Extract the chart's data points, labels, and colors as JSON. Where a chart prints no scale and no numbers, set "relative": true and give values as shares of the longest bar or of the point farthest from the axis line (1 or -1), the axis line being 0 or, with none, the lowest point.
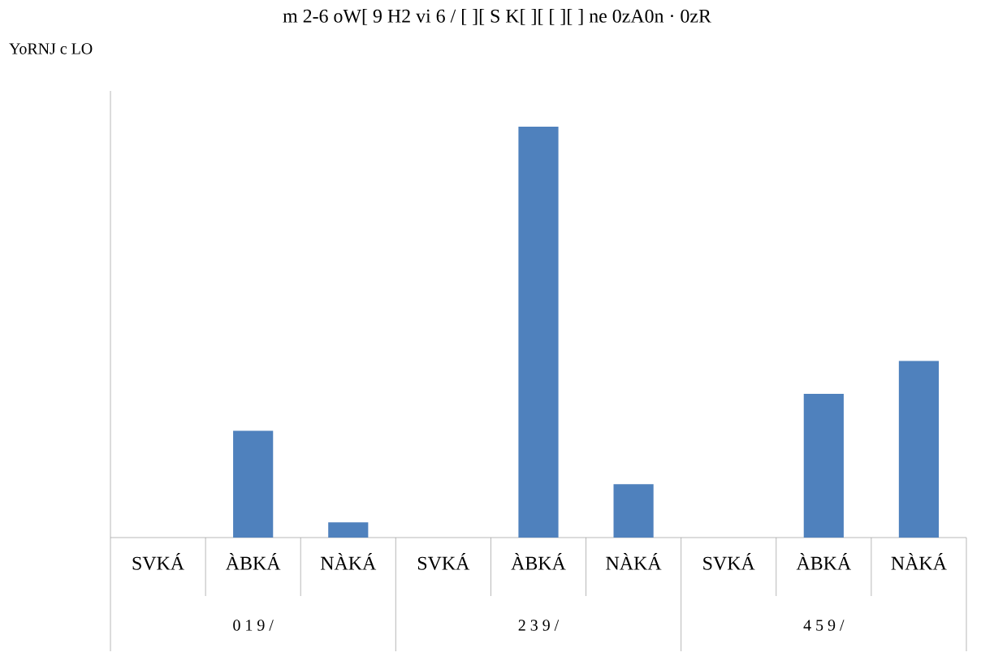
{
  "chart_data": {
    "type": "bar",
    "title": "m 2-6 oW[ 9 H2 vi 6 / [ ][ S K[ ][ [ ][ ] ne 0zA0n · 0zR",
    "subtitle": "YoRNJ c LO",
    "categories": [
      "SVKÁ",
      "ÀBKÁ",
      "NÀKÁ",
      "SVKÁ",
      "ÀBKÁ",
      "NÀKÁ",
      "SVKÁ",
      "ÀBKÁ",
      "NÀKÁ"
    ],
    "values": [
      0,
      0.26,
      0.037,
      0,
      1,
      0.13,
      0,
      0.35,
      0.43
    ],
    "color": "#4f81bd",
    "relative": true,
    "annotations": [
      "0 1 9 /",
      "2 3 9 /",
      "4 5 9 /"
    ]
  }
}
